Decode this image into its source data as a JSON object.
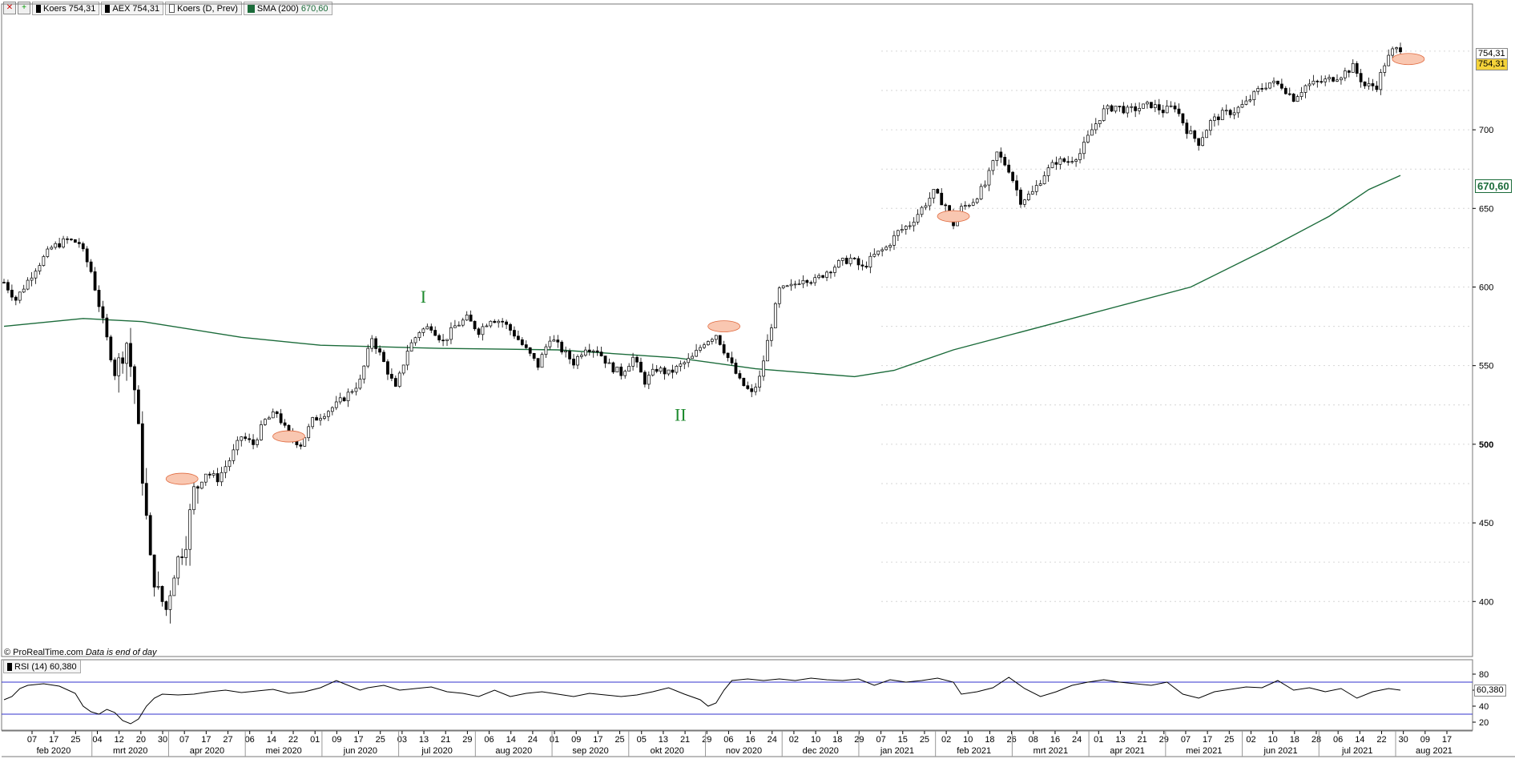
{
  "toolbar": {
    "buttons": [
      {
        "icon": "close-icon",
        "glyph": "✕"
      },
      {
        "icon": "add-icon",
        "glyph": "+"
      }
    ],
    "legend": [
      {
        "swatch": "black",
        "label": "Koers",
        "value": "754,31"
      },
      {
        "swatch": "black",
        "label": "AEX",
        "value": "754,31"
      },
      {
        "swatch": "white",
        "label": "Koers (D, Prev)",
        "value": ""
      },
      {
        "swatch": "green",
        "label": "SMA (200)",
        "value": "670,60"
      }
    ]
  },
  "footer": {
    "copyright": "© ProRealTime.com",
    "note": "Data is end of day"
  },
  "rsi": {
    "label": "RSI (14)",
    "value": "60,380",
    "y_ticks": [
      "80",
      "60",
      "40",
      "20"
    ],
    "upper_band": 70,
    "lower_band": 30
  },
  "price_axis": {
    "ticks": [
      "700",
      "650",
      "600",
      "550",
      "500",
      "450",
      "400"
    ],
    "last_price": "754,31",
    "prev_close": "754,31",
    "sma_value": "670,60"
  },
  "annotations": {
    "wave_1": "I",
    "wave_2": "II"
  },
  "colors": {
    "sma": "#1b6b3a",
    "rsi_band": "#3333cc",
    "marker_fill": "#f9c7b1",
    "marker_stroke": "#e06a3f",
    "candle": "#000000"
  },
  "chart_data": {
    "type": "candlestick",
    "instrument": "AEX",
    "ylim": [
      365,
      780
    ],
    "rsi_ylim": [
      10,
      90
    ],
    "x_axis": {
      "months": [
        "feb 2020",
        "mrt 2020",
        "apr 2020",
        "mei 2020",
        "jun 2020",
        "jul 2020",
        "aug 2020",
        "sep 2020",
        "okt 2020",
        "nov 2020",
        "dec 2020",
        "jan 2021",
        "feb 2021",
        "mrt 2021",
        "apr 2021",
        "mei 2021",
        "jun 2021",
        "jul 2021",
        "aug 2021"
      ],
      "days": [
        "07",
        "17",
        "25",
        "04",
        "12",
        "20",
        "30",
        "07",
        "17",
        "27",
        "06",
        "14",
        "22",
        "01",
        "09",
        "17",
        "25",
        "03",
        "13",
        "21",
        "29",
        "06",
        "14",
        "24",
        "01",
        "09",
        "17",
        "25",
        "05",
        "13",
        "21",
        "29",
        "06",
        "16",
        "24",
        "02",
        "10",
        "18",
        "29",
        "07",
        "15",
        "25",
        "02",
        "10",
        "18",
        "26",
        "08",
        "16",
        "24",
        "01",
        "13",
        "21",
        "29",
        "07",
        "17",
        "25",
        "02",
        "10",
        "18",
        "28",
        "06",
        "14",
        "22",
        "30",
        "09",
        "17"
      ]
    },
    "price_path": [
      [
        0,
        603
      ],
      [
        3,
        592
      ],
      [
        8,
        612
      ],
      [
        12,
        625
      ],
      [
        16,
        630
      ],
      [
        19,
        628
      ],
      [
        22,
        610
      ],
      [
        25,
        578
      ],
      [
        28,
        545
      ],
      [
        31,
        565
      ],
      [
        33,
        535
      ],
      [
        35,
        480
      ],
      [
        37,
        425
      ],
      [
        39,
        405
      ],
      [
        41,
        395
      ],
      [
        43,
        420
      ],
      [
        46,
        440
      ],
      [
        48,
        470
      ],
      [
        51,
        482
      ],
      [
        54,
        478
      ],
      [
        57,
        490
      ],
      [
        60,
        505
      ],
      [
        63,
        500
      ],
      [
        66,
        515
      ],
      [
        69,
        520
      ],
      [
        72,
        505
      ],
      [
        75,
        500
      ],
      [
        78,
        515
      ],
      [
        81,
        520
      ],
      [
        84,
        525
      ],
      [
        87,
        532
      ],
      [
        90,
        540
      ],
      [
        93,
        568
      ],
      [
        96,
        552
      ],
      [
        99,
        535
      ],
      [
        102,
        560
      ],
      [
        105,
        572
      ],
      [
        108,
        575
      ],
      [
        111,
        565
      ],
      [
        114,
        575
      ],
      [
        117,
        580
      ],
      [
        120,
        572
      ],
      [
        123,
        580
      ],
      [
        126,
        578
      ],
      [
        129,
        570
      ],
      [
        132,
        560
      ],
      [
        135,
        550
      ],
      [
        138,
        568
      ],
      [
        141,
        560
      ],
      [
        144,
        552
      ],
      [
        147,
        562
      ],
      [
        150,
        560
      ],
      [
        153,
        550
      ],
      [
        156,
        545
      ],
      [
        159,
        555
      ],
      [
        162,
        540
      ],
      [
        165,
        548
      ],
      [
        168,
        545
      ],
      [
        171,
        550
      ],
      [
        174,
        555
      ],
      [
        177,
        565
      ],
      [
        180,
        570
      ],
      [
        183,
        555
      ],
      [
        186,
        540
      ],
      [
        189,
        532
      ],
      [
        191,
        542
      ],
      [
        193,
        565
      ],
      [
        196,
        598
      ],
      [
        199,
        600
      ],
      [
        202,
        606
      ],
      [
        205,
        604
      ],
      [
        208,
        610
      ],
      [
        211,
        615
      ],
      [
        214,
        618
      ],
      [
        217,
        612
      ],
      [
        220,
        620
      ],
      [
        223,
        625
      ],
      [
        226,
        635
      ],
      [
        229,
        640
      ],
      [
        232,
        650
      ],
      [
        235,
        660
      ],
      [
        238,
        652
      ],
      [
        240,
        640
      ],
      [
        242,
        650
      ],
      [
        245,
        655
      ],
      [
        248,
        665
      ],
      [
        251,
        685
      ],
      [
        254,
        675
      ],
      [
        257,
        655
      ],
      [
        260,
        660
      ],
      [
        263,
        672
      ],
      [
        266,
        680
      ],
      [
        269,
        680
      ],
      [
        272,
        685
      ],
      [
        275,
        700
      ],
      [
        278,
        712
      ],
      [
        281,
        715
      ],
      [
        284,
        712
      ],
      [
        287,
        714
      ],
      [
        290,
        716
      ],
      [
        293,
        712
      ],
      [
        296,
        715
      ],
      [
        299,
        700
      ],
      [
        302,
        692
      ],
      [
        305,
        705
      ],
      [
        308,
        710
      ],
      [
        311,
        712
      ],
      [
        314,
        717
      ],
      [
        317,
        725
      ],
      [
        320,
        730
      ],
      [
        323,
        728
      ],
      [
        326,
        720
      ],
      [
        329,
        728
      ],
      [
        332,
        730
      ],
      [
        335,
        732
      ],
      [
        338,
        735
      ],
      [
        341,
        740
      ],
      [
        344,
        728
      ],
      [
        347,
        728
      ],
      [
        349,
        742
      ],
      [
        351,
        750
      ],
      [
        353,
        752
      ]
    ],
    "sma200_path": [
      [
        0,
        575
      ],
      [
        20,
        580
      ],
      [
        35,
        578
      ],
      [
        60,
        568
      ],
      [
        80,
        563
      ],
      [
        110,
        561
      ],
      [
        140,
        560
      ],
      [
        170,
        555
      ],
      [
        190,
        548
      ],
      [
        205,
        545
      ],
      [
        215,
        543
      ],
      [
        225,
        547
      ],
      [
        240,
        560
      ],
      [
        270,
        580
      ],
      [
        300,
        600
      ],
      [
        320,
        625
      ],
      [
        335,
        645
      ],
      [
        345,
        662
      ],
      [
        353,
        671
      ]
    ],
    "rsi_path": [
      [
        0,
        48
      ],
      [
        2,
        52
      ],
      [
        4,
        62
      ],
      [
        6,
        66
      ],
      [
        10,
        68
      ],
      [
        14,
        65
      ],
      [
        18,
        56
      ],
      [
        20,
        40
      ],
      [
        22,
        33
      ],
      [
        24,
        30
      ],
      [
        26,
        36
      ],
      [
        28,
        32
      ],
      [
        30,
        22
      ],
      [
        32,
        18
      ],
      [
        34,
        24
      ],
      [
        36,
        40
      ],
      [
        38,
        50
      ],
      [
        40,
        55
      ],
      [
        44,
        54
      ],
      [
        48,
        55
      ],
      [
        52,
        58
      ],
      [
        56,
        60
      ],
      [
        60,
        57
      ],
      [
        64,
        59
      ],
      [
        68,
        61
      ],
      [
        72,
        56
      ],
      [
        76,
        58
      ],
      [
        80,
        63
      ],
      [
        84,
        72
      ],
      [
        88,
        64
      ],
      [
        90,
        60
      ],
      [
        92,
        63
      ],
      [
        96,
        66
      ],
      [
        100,
        60
      ],
      [
        104,
        62
      ],
      [
        108,
        64
      ],
      [
        112,
        58
      ],
      [
        116,
        56
      ],
      [
        120,
        52
      ],
      [
        124,
        60
      ],
      [
        128,
        52
      ],
      [
        132,
        56
      ],
      [
        136,
        58
      ],
      [
        140,
        55
      ],
      [
        144,
        52
      ],
      [
        148,
        56
      ],
      [
        152,
        54
      ],
      [
        156,
        52
      ],
      [
        160,
        54
      ],
      [
        164,
        58
      ],
      [
        168,
        63
      ],
      [
        172,
        55
      ],
      [
        176,
        48
      ],
      [
        178,
        40
      ],
      [
        180,
        44
      ],
      [
        182,
        60
      ],
      [
        184,
        72
      ],
      [
        188,
        74
      ],
      [
        192,
        72
      ],
      [
        196,
        74
      ],
      [
        200,
        72
      ],
      [
        204,
        75
      ],
      [
        208,
        73
      ],
      [
        212,
        72
      ],
      [
        216,
        74
      ],
      [
        220,
        66
      ],
      [
        224,
        73
      ],
      [
        228,
        70
      ],
      [
        232,
        72
      ],
      [
        236,
        75
      ],
      [
        240,
        70
      ],
      [
        242,
        55
      ],
      [
        246,
        58
      ],
      [
        250,
        63
      ],
      [
        254,
        76
      ],
      [
        258,
        62
      ],
      [
        262,
        52
      ],
      [
        266,
        58
      ],
      [
        270,
        66
      ],
      [
        274,
        70
      ],
      [
        278,
        73
      ],
      [
        282,
        70
      ],
      [
        286,
        68
      ],
      [
        290,
        66
      ],
      [
        294,
        70
      ],
      [
        298,
        55
      ],
      [
        302,
        50
      ],
      [
        306,
        58
      ],
      [
        310,
        61
      ],
      [
        314,
        64
      ],
      [
        318,
        63
      ],
      [
        322,
        72
      ],
      [
        326,
        60
      ],
      [
        330,
        63
      ],
      [
        334,
        58
      ],
      [
        338,
        62
      ],
      [
        342,
        50
      ],
      [
        346,
        58
      ],
      [
        350,
        62
      ],
      [
        353,
        60
      ]
    ],
    "markers": [
      [
        45,
        478
      ],
      [
        72,
        505
      ],
      [
        182,
        575
      ],
      [
        240,
        645
      ],
      [
        355,
        745
      ]
    ],
    "wave_labels": [
      {
        "text": "I",
        "x": 106,
        "y": 590
      },
      {
        "text": "II",
        "x": 171,
        "y": 515
      }
    ]
  }
}
